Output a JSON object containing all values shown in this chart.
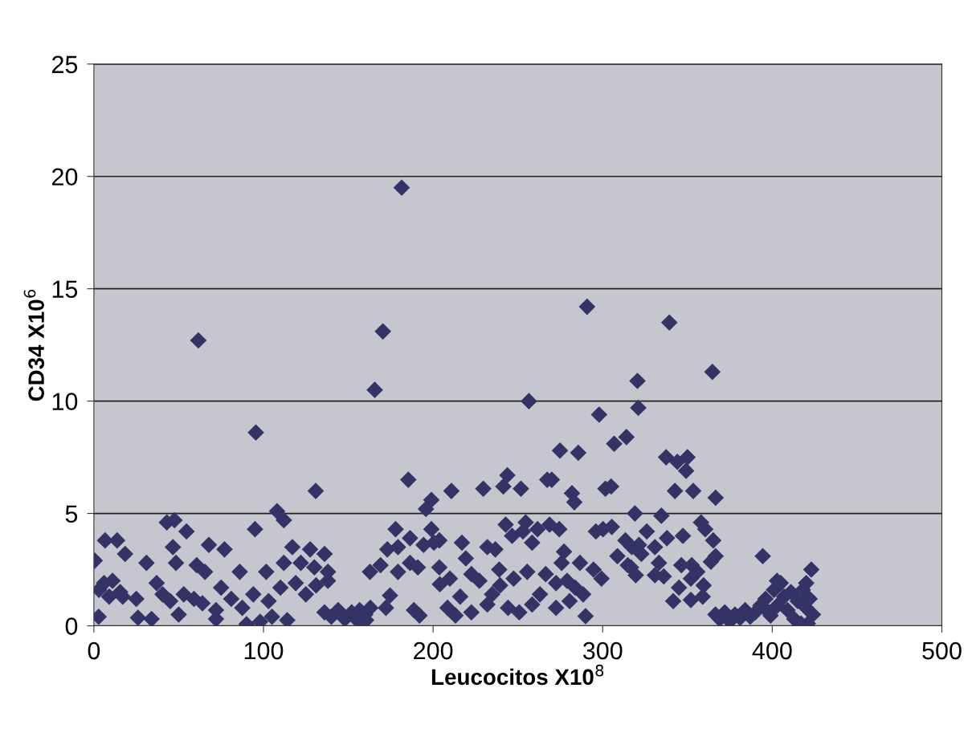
{
  "chart_data": {
    "type": "scatter",
    "xlabel": "Leucocitos X10$^{8}$",
    "ylabel": "CD34 X10$^{6}$",
    "xlim": [
      0,
      500
    ],
    "xticks": [
      0,
      100,
      200,
      300,
      400,
      500
    ],
    "ylim": [
      0,
      25
    ],
    "yticks": [
      0,
      5,
      10,
      15,
      20,
      25
    ],
    "grid": "y",
    "marker": "diamond",
    "series": [
      {
        "color": "#333366",
        "x": [
          61.6,
          95.5,
          130.8,
          108,
          112,
          43,
          47.5,
          54.6,
          95,
          6.6,
          13.7,
          18.4,
          0.5,
          2.8,
          46.6,
          48.4,
          67.8,
          77,
          60.6,
          65.5,
          86,
          101.6,
          117,
          127.5,
          136,
          122,
          130,
          138,
          112,
          26,
          34,
          50,
          72,
          90,
          98,
          105,
          114,
          11,
          15.5,
          17,
          25,
          31,
          37,
          40.5,
          45,
          53,
          59,
          64,
          72,
          75,
          81,
          87.5,
          94,
          103,
          110,
          119,
          125,
          131,
          138,
          136,
          140,
          144,
          148,
          152,
          156,
          160,
          163,
          3,
          6,
          9,
          170.4,
          165.6,
          290.8,
          256.5,
          297.9,
          320.5,
          321,
          306.8,
          314,
          274.8,
          285.6,
          185.4,
          210.8,
          229.6,
          243.8,
          241.4,
          251.8,
          267.3,
          270,
          281.9,
          283.3,
          301.6,
          305,
          319,
          199,
          195.8,
          177.9,
          186.4,
          199,
          200.5,
          203.7,
          194.4,
          217,
          232,
          236.7,
          242.8,
          246.6,
          254.6,
          253,
          261.6,
          258.4,
          268.7,
          274.4,
          277.2,
          296,
          300.2,
          305.4,
          313.4,
          317.2,
          173,
          179.3,
          162.8,
          169,
          179.3,
          186.4,
          191,
          203.7,
          204,
          209.9,
          219.3,
          222.6,
          227.3,
          239,
          239.5,
          247.5,
          255.5,
          266.4,
          275.8,
          272.5,
          279,
          286.6,
          294.6,
          299.3,
          308.7,
          314.8,
          321.4,
          156.7,
          160.5,
          172.2,
          174.6,
          188.7,
          192,
          208.5,
          213.2,
          216,
          222.6,
          232,
          234.8,
          244.2,
          250.8,
          258.4,
          263,
          272.5,
          280.5,
          283.8,
          289.9,
          288.5,
          181.5,
          339.3,
          364.7,
          337.4,
          344,
          350,
          349.2,
          342.6,
          353.4,
          366.6,
          334.6,
          326,
          337.9,
          347.3,
          358,
          360.5,
          365.2,
          330.8,
          322.8,
          366.6,
          363.8,
          316.7,
          333.2,
          346.4,
          352.5,
          355.8,
          330.8,
          336,
          352,
          319.5,
          345,
          359.5,
          341.6,
          352,
          359,
          394.4,
          423,
          366.5,
          369,
          372,
          375,
          378,
          381,
          384,
          387,
          390,
          393,
          396,
          398,
          401,
          403,
          405,
          407,
          409,
          411,
          413,
          415,
          418,
          420,
          422,
          424,
          421,
          399,
          402.8,
          417,
          420
        ],
        "values": [
          12.7,
          8.6,
          6.0,
          5.1,
          4.7,
          4.6,
          4.7,
          4.2,
          4.3,
          3.8,
          3.8,
          3.2,
          2.9,
          0.4,
          3.5,
          2.8,
          3.6,
          3.4,
          2.7,
          2.4,
          2.4,
          2.4,
          3.5,
          3.4,
          3.2,
          2.8,
          2.6,
          2.0,
          2.8,
          0.36,
          0.3,
          0.5,
          0.3,
          0.07,
          0.18,
          0.4,
          0.25,
          2.0,
          1.5,
          1.3,
          1.2,
          2.8,
          1.9,
          1.4,
          1.1,
          1.4,
          1.2,
          1.0,
          0.7,
          1.7,
          1.2,
          0.8,
          1.4,
          1.1,
          1.7,
          1.9,
          1.4,
          1.8,
          2.4,
          0.6,
          0.4,
          0.7,
          0.3,
          0.6,
          0.2,
          0.5,
          0.8,
          1.6,
          1.9,
          1.3,
          13.1,
          10.5,
          14.2,
          10.0,
          9.4,
          10.9,
          9.7,
          8.1,
          8.4,
          7.8,
          7.7,
          6.5,
          6.0,
          6.1,
          6.7,
          6.2,
          6.1,
          6.5,
          6.5,
          5.9,
          5.5,
          6.1,
          6.2,
          5.0,
          5.6,
          5.2,
          4.3,
          3.9,
          4.3,
          3.7,
          3.8,
          3.6,
          3.7,
          3.5,
          3.4,
          4.5,
          4.0,
          4.6,
          4.2,
          4.3,
          3.7,
          4.5,
          4.3,
          3.3,
          4.2,
          4.3,
          4.4,
          3.8,
          3.5,
          3.4,
          3.5,
          2.4,
          2.7,
          2.4,
          2.8,
          2.6,
          2.6,
          1.85,
          2.1,
          3.0,
          2.3,
          2.0,
          2.5,
          1.8,
          2.1,
          2.4,
          2.3,
          2.8,
          1.9,
          2.0,
          2.8,
          2.5,
          2.1,
          3.1,
          2.7,
          3.6,
          0.7,
          0.25,
          0.8,
          1.35,
          0.7,
          0.46,
          0.8,
          0.46,
          1.3,
          0.6,
          0.95,
          1.4,
          0.8,
          0.6,
          0.95,
          1.4,
          0.8,
          1.1,
          1.7,
          0.43,
          1.4,
          19.5,
          13.5,
          11.3,
          7.5,
          7.3,
          7.5,
          6.9,
          6.0,
          6.0,
          5.7,
          4.9,
          4.2,
          3.9,
          4.0,
          4.6,
          4.3,
          3.8,
          3.5,
          3.2,
          3.1,
          2.85,
          2.6,
          2.8,
          2.7,
          2.7,
          2.4,
          2.25,
          2.2,
          2.1,
          2.25,
          1.7,
          1.8,
          1.1,
          1.15,
          1.3,
          3.1,
          2.5,
          0.5,
          0.3,
          0.6,
          0.2,
          0.5,
          0.35,
          0.7,
          0.4,
          0.6,
          0.9,
          1.2,
          0.6,
          1.6,
          0.9,
          1.9,
          1.3,
          0.7,
          1.5,
          0.3,
          1.1,
          1.6,
          0.8,
          1.2,
          0.5,
          0.1,
          0.46,
          2.0,
          0.1,
          1.9
        ]
      }
    ]
  }
}
